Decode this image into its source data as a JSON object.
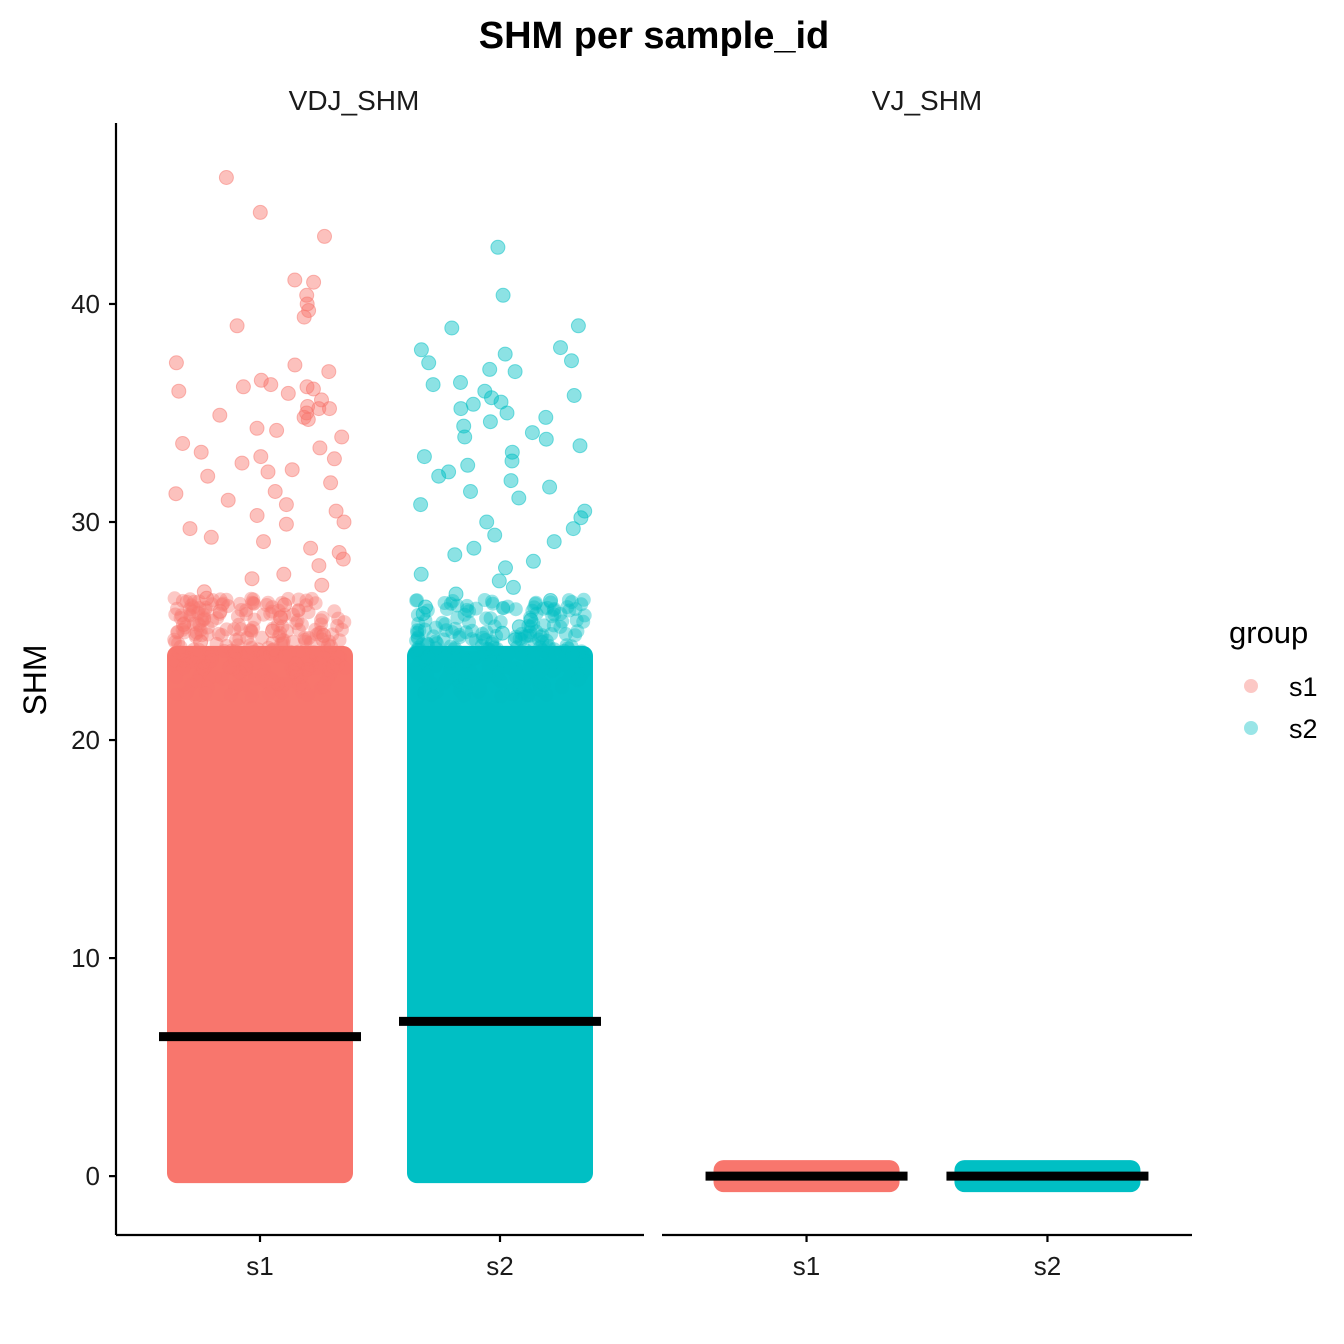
{
  "chart_data": {
    "type": "scatter",
    "title": "SHM per sample_id",
    "ylabel": "SHM",
    "xlabel": "",
    "ylim": [
      -2.7,
      48.3
    ],
    "yticks": [
      0,
      10,
      20,
      30,
      40
    ],
    "categories": [
      "s1",
      "s2"
    ],
    "panels": [
      {
        "name": "VDJ_SHM",
        "median": {
          "s1": 6.4,
          "s2": 7.1
        },
        "max": {
          "s1": 45.8,
          "s2": 42.6
        },
        "dense_range": {
          "s1": [
            0,
            24
          ],
          "s2": [
            0,
            24
          ]
        },
        "outliers": {
          "s1": [
            45.8,
            44.2,
            43.1,
            41.0,
            41.1,
            40.4,
            40.0,
            39.7,
            39.4,
            39.0,
            37.3,
            37.2,
            36.9,
            36.5,
            36.3,
            36.2,
            36.2,
            36.1,
            36.0,
            35.9,
            35.6,
            35.3,
            35.2,
            35.2,
            35.0,
            34.9,
            34.8,
            34.7,
            34.3,
            34.2,
            33.9,
            33.6,
            33.4,
            33.2,
            33.0,
            32.9,
            32.7,
            32.4,
            32.3,
            32.1,
            31.8,
            31.4,
            31.3,
            31.0,
            30.8,
            30.5,
            30.3,
            30.0,
            29.9,
            29.7,
            29.3,
            29.1,
            28.8,
            28.6,
            28.3,
            28.0,
            27.6,
            27.4,
            27.1,
            26.8,
            26.5,
            26.2,
            25.9,
            25.6,
            25.3,
            25.0,
            24.8,
            24.5
          ],
          "s2": [
            42.6,
            40.4,
            39.0,
            38.9,
            38.0,
            37.9,
            37.7,
            37.4,
            37.3,
            37.0,
            36.9,
            36.4,
            36.3,
            36.0,
            35.8,
            35.7,
            35.5,
            35.4,
            35.2,
            35.0,
            34.8,
            34.6,
            34.4,
            34.1,
            33.9,
            33.8,
            33.5,
            33.2,
            33.0,
            32.8,
            32.6,
            32.3,
            32.1,
            31.9,
            31.6,
            31.4,
            31.1,
            30.8,
            30.5,
            30.2,
            30.0,
            29.7,
            29.4,
            29.1,
            28.8,
            28.5,
            28.2,
            27.9,
            27.6,
            27.3,
            27.0,
            26.7,
            26.4,
            26.1,
            25.8,
            25.5,
            25.2,
            24.9,
            24.6
          ]
        }
      },
      {
        "name": "VJ_SHM",
        "median": {
          "s1": 0,
          "s2": 0
        },
        "max": {
          "s1": 0,
          "s2": 0
        },
        "dense_range": {
          "s1": [
            0,
            0
          ],
          "s2": [
            0,
            0
          ]
        },
        "outliers": {
          "s1": [],
          "s2": []
        }
      }
    ],
    "legend": {
      "title": "group",
      "position": "right",
      "entries": [
        {
          "label": "s1",
          "color": "#F8766D"
        },
        {
          "label": "s2",
          "color": "#00BFC4"
        }
      ]
    },
    "median_line_color": "#000000",
    "grid": false
  }
}
